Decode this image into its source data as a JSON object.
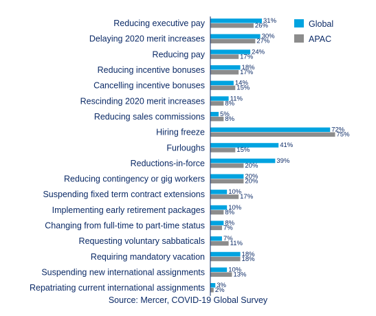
{
  "chart_data": {
    "type": "bar",
    "orientation": "horizontal",
    "categories": [
      "Reducing executive pay",
      "Delaying 2020 merit increases",
      "Reducing pay",
      "Reducing incentive bonuses",
      "Cancelling incentive bonuses",
      "Rescinding 2020 merit increases",
      "Reducing sales commissions",
      "Hiring freeze",
      "Furloughs",
      "Reductions-in-force",
      "Reducing contingency or gig workers",
      "Suspending fixed term contract extensions",
      "Implementing early retirement packages",
      "Changing from full-time to part-time status",
      "Requesting voluntary sabbaticals",
      "Requiring mandatory vacation",
      "Suspending new international assignments",
      "Repatriating current international assignments"
    ],
    "series": [
      {
        "name": "Global",
        "color": "#00a3e0",
        "values": [
          31,
          30,
          24,
          18,
          14,
          11,
          5,
          72,
          41,
          39,
          20,
          10,
          10,
          8,
          7,
          18,
          10,
          3
        ]
      },
      {
        "name": "APAC",
        "color": "#8c8c8c",
        "values": [
          26,
          27,
          17,
          17,
          15,
          8,
          8,
          75,
          15,
          20,
          20,
          17,
          8,
          7,
          11,
          18,
          13,
          2
        ]
      }
    ],
    "value_suffix": "%",
    "xlim": [
      0,
      100
    ],
    "legend_position": "top-right",
    "grid": false
  },
  "source": "Source: Mercer, COVID-19 Global Survey"
}
